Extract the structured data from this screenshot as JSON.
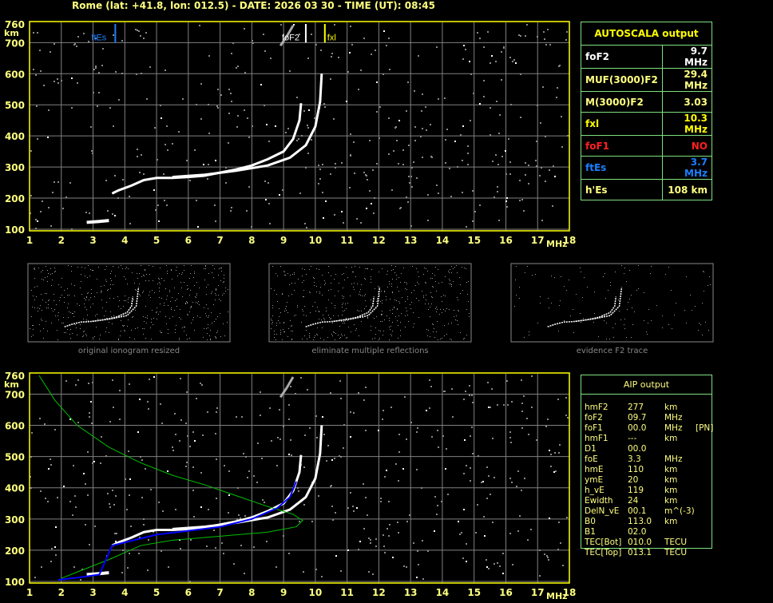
{
  "title": "Rome (lat: +41.8, lon: 012.5) - DATE: 2026 03 30 - TIME (UT): 08:45",
  "colors": {
    "axis": "#ffff00",
    "grid": "#808080",
    "table_border": "#7fe07f",
    "text_yellow": "#ffff80",
    "es_blue": "#1a7fff",
    "f1_red": "#ff2020",
    "profile_green": "#00c000",
    "trace_blue": "#0000ff"
  },
  "axes": {
    "y_unit": "km",
    "x_unit": "MHz",
    "y_ticks": [
      "760",
      "700",
      "600",
      "500",
      "400",
      "300",
      "200",
      "100"
    ],
    "x_ticks": [
      "1",
      "2",
      "3",
      "4",
      "5",
      "6",
      "7",
      "8",
      "9",
      "10",
      "11",
      "12",
      "13",
      "14",
      "15",
      "16",
      "17",
      "18"
    ]
  },
  "markers": {
    "ftEs": "ftEs",
    "foF2": "foF2",
    "fxl": "fxl"
  },
  "autoscala": {
    "title": "AUTOSCALA output",
    "rows": [
      {
        "label": "foF2",
        "value": "9.7 MHz",
        "color": "#ffffff"
      },
      {
        "label": "MUF(3000)F2",
        "value": "29.4 MHz",
        "color": "#ffff80"
      },
      {
        "label": "M(3000)F2",
        "value": "3.03",
        "color": "#ffff80"
      },
      {
        "label": "fxl",
        "value": "10.3 MHz",
        "color": "#ffff00"
      },
      {
        "label": "foF1",
        "value": "NO",
        "color": "#ff2020"
      },
      {
        "label": "ftEs",
        "value": "3.7 MHz",
        "color": "#1a7fff"
      },
      {
        "label": "h'Es",
        "value": "108     km",
        "color": "#ffff80"
      }
    ]
  },
  "thumbnails": [
    "original ionogram resized",
    "eliminate multiple reflections",
    "evidence F2 trace"
  ],
  "aip": {
    "title": "AIP output",
    "rows": [
      [
        "hmF2",
        "277",
        "km",
        ""
      ],
      [
        "foF2",
        "09.7",
        "MHz",
        ""
      ],
      [
        "foF1",
        "00.0",
        "MHz",
        "[PN]"
      ],
      [
        "hmF1",
        "---",
        "km",
        ""
      ],
      [
        "D1",
        "00.0",
        "",
        ""
      ],
      [
        "foE",
        "3.3",
        "MHz",
        ""
      ],
      [
        "hmE",
        "110",
        "km",
        ""
      ],
      [
        "ymE",
        "20",
        "km",
        ""
      ],
      [
        "h_vE",
        "119",
        "km",
        ""
      ],
      [
        "Ewidth",
        "24",
        "km",
        ""
      ],
      [
        "DelN_vE",
        "00.1",
        "m^(-3)",
        ""
      ],
      [
        "B0",
        "113.0",
        "km",
        ""
      ],
      [
        "B1",
        "02.0",
        "",
        ""
      ],
      [
        "TEC[Bot]",
        "010.0",
        "TECU",
        ""
      ],
      [
        "TEC[Top]",
        "013.1",
        "TECU",
        ""
      ]
    ]
  }
}
